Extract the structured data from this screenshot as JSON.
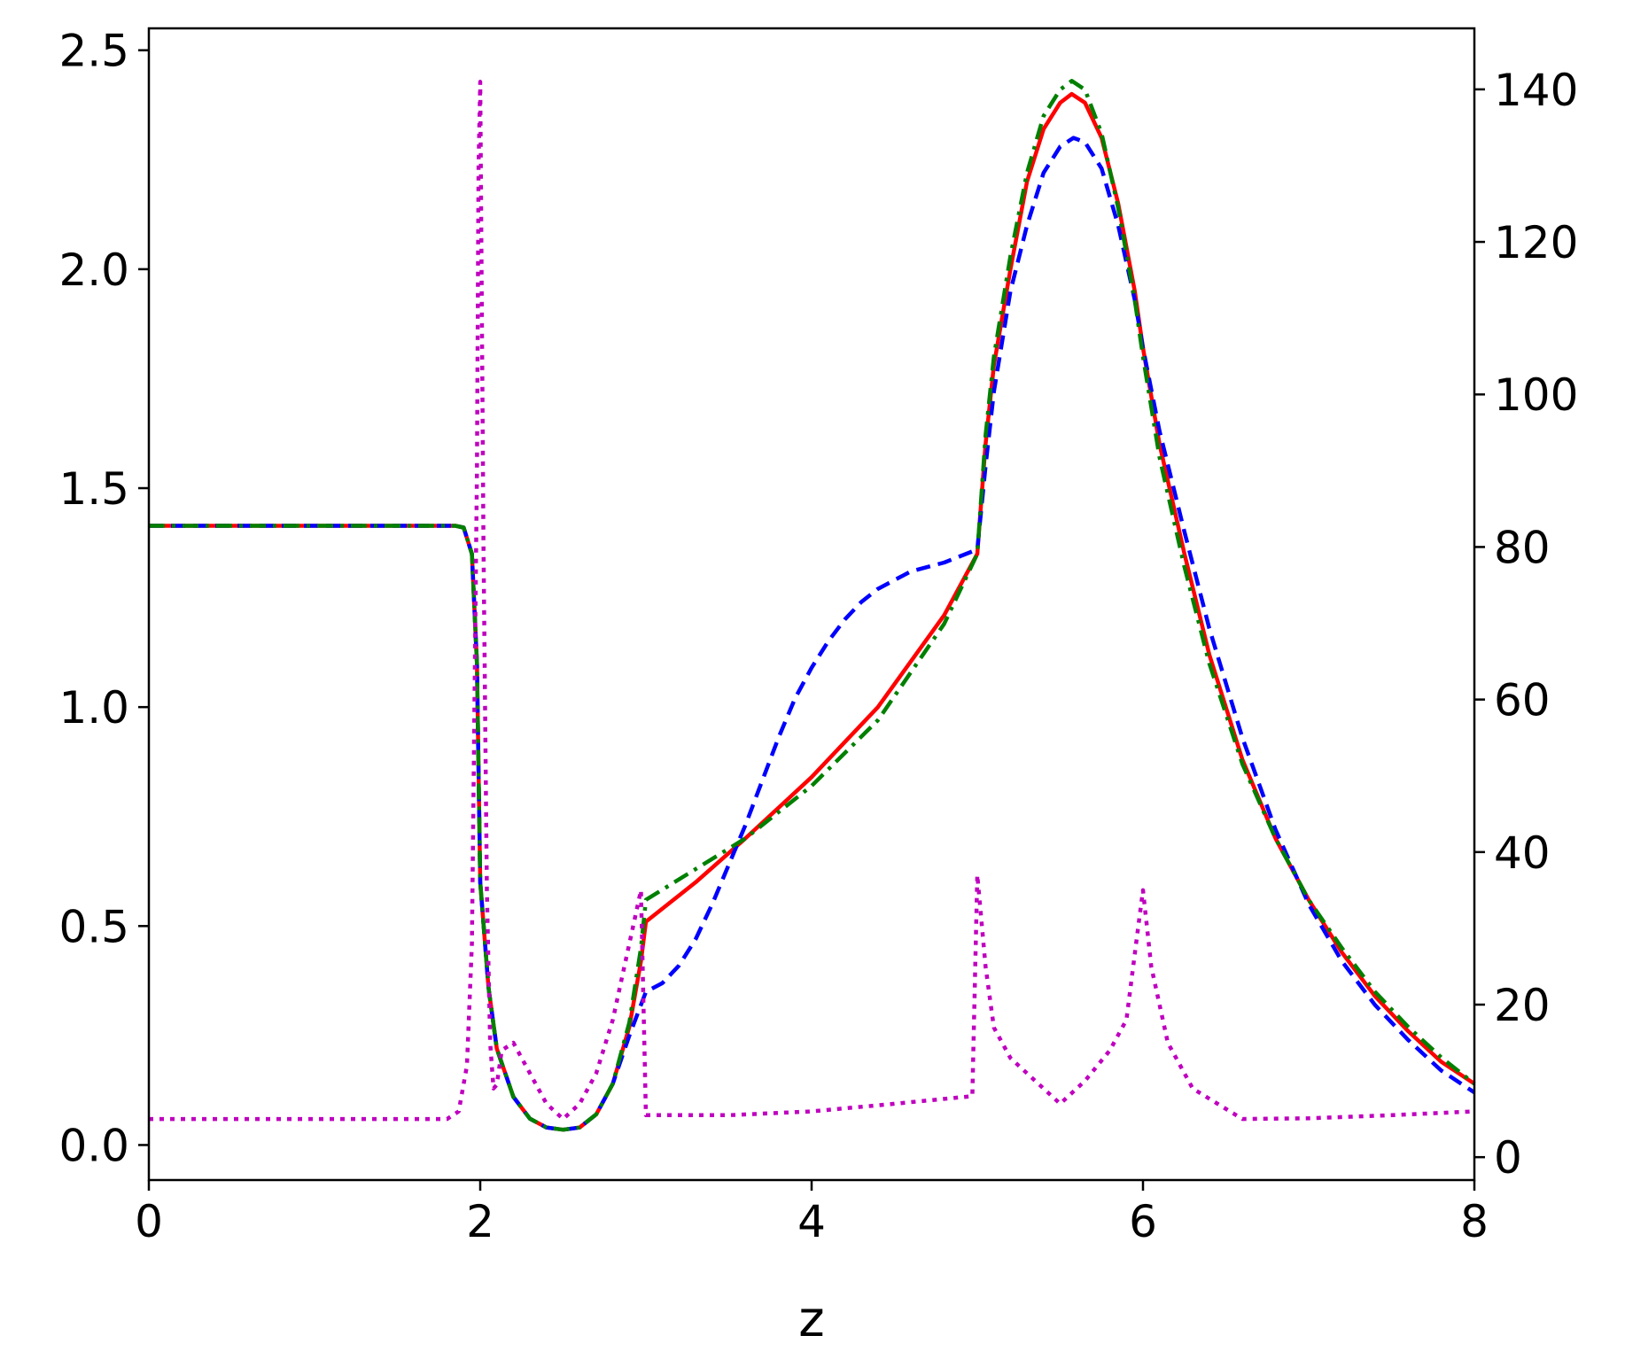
{
  "chart_data": {
    "type": "line",
    "xlabel": "z",
    "ylabel": "",
    "y2label": "",
    "xlim": [
      0,
      8
    ],
    "ylim": [
      -0.08,
      2.55
    ],
    "y2lim": [
      -3,
      148
    ],
    "xticks": [
      "0",
      "2",
      "4",
      "6",
      "8"
    ],
    "yticks": [
      "0.0",
      "0.5",
      "1.0",
      "1.5",
      "2.0",
      "2.5"
    ],
    "y2ticks": [
      "0",
      "20",
      "40",
      "60",
      "80",
      "100",
      "120",
      "140"
    ],
    "grid": false,
    "legend": "none",
    "series": [
      {
        "axis": "left",
        "color": "#ff0000",
        "style": "solid",
        "points": [
          [
            0,
            1.414
          ],
          [
            1.85,
            1.414
          ],
          [
            1.9,
            1.41
          ],
          [
            1.95,
            1.35
          ],
          [
            1.98,
            1.1
          ],
          [
            2.0,
            0.6
          ],
          [
            2.05,
            0.36
          ],
          [
            2.1,
            0.22
          ],
          [
            2.2,
            0.11
          ],
          [
            2.3,
            0.06
          ],
          [
            2.4,
            0.04
          ],
          [
            2.5,
            0.035
          ],
          [
            2.6,
            0.04
          ],
          [
            2.7,
            0.07
          ],
          [
            2.8,
            0.14
          ],
          [
            2.9,
            0.27
          ],
          [
            2.97,
            0.42
          ],
          [
            3.0,
            0.51
          ],
          [
            3.3,
            0.6
          ],
          [
            3.6,
            0.7
          ],
          [
            4.0,
            0.84
          ],
          [
            4.4,
            1.0
          ],
          [
            4.8,
            1.21
          ],
          [
            5.0,
            1.35
          ],
          [
            5.05,
            1.6
          ],
          [
            5.1,
            1.78
          ],
          [
            5.2,
            2.0
          ],
          [
            5.3,
            2.2
          ],
          [
            5.4,
            2.32
          ],
          [
            5.5,
            2.38
          ],
          [
            5.57,
            2.4
          ],
          [
            5.65,
            2.38
          ],
          [
            5.75,
            2.3
          ],
          [
            5.85,
            2.15
          ],
          [
            5.95,
            1.95
          ],
          [
            6.0,
            1.82
          ],
          [
            6.1,
            1.6
          ],
          [
            6.25,
            1.35
          ],
          [
            6.4,
            1.12
          ],
          [
            6.6,
            0.88
          ],
          [
            6.8,
            0.7
          ],
          [
            7.0,
            0.56
          ],
          [
            7.2,
            0.44
          ],
          [
            7.4,
            0.34
          ],
          [
            7.6,
            0.26
          ],
          [
            7.8,
            0.19
          ],
          [
            8.0,
            0.14
          ]
        ]
      },
      {
        "axis": "left",
        "color": "#0000ff",
        "style": "dashed",
        "points": [
          [
            0,
            1.414
          ],
          [
            1.85,
            1.414
          ],
          [
            1.9,
            1.41
          ],
          [
            1.95,
            1.35
          ],
          [
            1.98,
            1.1
          ],
          [
            2.0,
            0.6
          ],
          [
            2.05,
            0.36
          ],
          [
            2.1,
            0.22
          ],
          [
            2.2,
            0.11
          ],
          [
            2.3,
            0.06
          ],
          [
            2.4,
            0.04
          ],
          [
            2.5,
            0.035
          ],
          [
            2.6,
            0.04
          ],
          [
            2.7,
            0.07
          ],
          [
            2.8,
            0.14
          ],
          [
            2.9,
            0.25
          ],
          [
            3.0,
            0.35
          ],
          [
            3.1,
            0.37
          ],
          [
            3.2,
            0.41
          ],
          [
            3.3,
            0.47
          ],
          [
            3.4,
            0.55
          ],
          [
            3.5,
            0.64
          ],
          [
            3.6,
            0.73
          ],
          [
            3.7,
            0.83
          ],
          [
            3.8,
            0.93
          ],
          [
            3.9,
            1.02
          ],
          [
            4.0,
            1.09
          ],
          [
            4.1,
            1.15
          ],
          [
            4.2,
            1.2
          ],
          [
            4.3,
            1.24
          ],
          [
            4.4,
            1.27
          ],
          [
            4.5,
            1.29
          ],
          [
            4.6,
            1.31
          ],
          [
            4.8,
            1.33
          ],
          [
            5.0,
            1.36
          ],
          [
            5.05,
            1.55
          ],
          [
            5.1,
            1.72
          ],
          [
            5.2,
            1.95
          ],
          [
            5.3,
            2.1
          ],
          [
            5.4,
            2.22
          ],
          [
            5.5,
            2.28
          ],
          [
            5.58,
            2.3
          ],
          [
            5.65,
            2.29
          ],
          [
            5.75,
            2.23
          ],
          [
            5.85,
            2.1
          ],
          [
            5.95,
            1.93
          ],
          [
            6.0,
            1.82
          ],
          [
            6.1,
            1.63
          ],
          [
            6.25,
            1.4
          ],
          [
            6.4,
            1.18
          ],
          [
            6.6,
            0.93
          ],
          [
            6.8,
            0.72
          ],
          [
            7.0,
            0.55
          ],
          [
            7.2,
            0.42
          ],
          [
            7.4,
            0.32
          ],
          [
            7.6,
            0.24
          ],
          [
            7.8,
            0.17
          ],
          [
            8.0,
            0.12
          ]
        ]
      },
      {
        "axis": "left",
        "color": "#008000",
        "style": "dashdot",
        "points": [
          [
            0,
            1.414
          ],
          [
            1.85,
            1.414
          ],
          [
            1.9,
            1.41
          ],
          [
            1.95,
            1.35
          ],
          [
            1.98,
            1.1
          ],
          [
            2.0,
            0.6
          ],
          [
            2.05,
            0.36
          ],
          [
            2.1,
            0.22
          ],
          [
            2.2,
            0.11
          ],
          [
            2.3,
            0.06
          ],
          [
            2.4,
            0.04
          ],
          [
            2.5,
            0.035
          ],
          [
            2.6,
            0.04
          ],
          [
            2.7,
            0.07
          ],
          [
            2.8,
            0.14
          ],
          [
            2.9,
            0.28
          ],
          [
            2.97,
            0.45
          ],
          [
            3.0,
            0.56
          ],
          [
            3.3,
            0.63
          ],
          [
            3.6,
            0.7
          ],
          [
            4.0,
            0.82
          ],
          [
            4.4,
            0.97
          ],
          [
            4.8,
            1.19
          ],
          [
            5.0,
            1.35
          ],
          [
            5.05,
            1.62
          ],
          [
            5.1,
            1.8
          ],
          [
            5.2,
            2.03
          ],
          [
            5.3,
            2.22
          ],
          [
            5.4,
            2.35
          ],
          [
            5.5,
            2.41
          ],
          [
            5.57,
            2.43
          ],
          [
            5.65,
            2.41
          ],
          [
            5.75,
            2.31
          ],
          [
            5.85,
            2.14
          ],
          [
            5.95,
            1.93
          ],
          [
            6.0,
            1.8
          ],
          [
            6.1,
            1.57
          ],
          [
            6.25,
            1.32
          ],
          [
            6.4,
            1.1
          ],
          [
            6.6,
            0.87
          ],
          [
            6.8,
            0.7
          ],
          [
            7.0,
            0.56
          ],
          [
            7.2,
            0.45
          ],
          [
            7.4,
            0.35
          ],
          [
            7.6,
            0.27
          ],
          [
            7.8,
            0.2
          ],
          [
            8.0,
            0.14
          ]
        ]
      },
      {
        "axis": "right",
        "color": "#bf00bf",
        "style": "dotted",
        "points": [
          [
            0,
            5
          ],
          [
            1.8,
            5
          ],
          [
            1.87,
            6
          ],
          [
            1.92,
            12
          ],
          [
            1.95,
            28
          ],
          [
            1.98,
            90
          ],
          [
            1.99,
            130
          ],
          [
            2.0,
            141
          ],
          [
            2.02,
            80
          ],
          [
            2.04,
            35
          ],
          [
            2.06,
            15
          ],
          [
            2.08,
            9
          ],
          [
            2.1,
            9.5
          ],
          [
            2.13,
            14
          ],
          [
            2.2,
            15
          ],
          [
            2.3,
            11
          ],
          [
            2.4,
            7
          ],
          [
            2.5,
            5
          ],
          [
            2.6,
            7
          ],
          [
            2.7,
            11
          ],
          [
            2.8,
            18
          ],
          [
            2.9,
            28
          ],
          [
            2.97,
            35
          ],
          [
            3.0,
            5.5
          ],
          [
            3.5,
            5.5
          ],
          [
            4.0,
            6
          ],
          [
            4.5,
            7
          ],
          [
            4.97,
            8
          ],
          [
            5.0,
            37
          ],
          [
            5.05,
            25
          ],
          [
            5.1,
            17
          ],
          [
            5.2,
            13
          ],
          [
            5.35,
            10
          ],
          [
            5.5,
            7
          ],
          [
            5.65,
            10
          ],
          [
            5.8,
            14
          ],
          [
            5.9,
            18
          ],
          [
            5.97,
            30
          ],
          [
            6.0,
            35
          ],
          [
            6.05,
            25
          ],
          [
            6.15,
            15
          ],
          [
            6.3,
            9
          ],
          [
            6.45,
            7
          ],
          [
            6.6,
            5
          ],
          [
            7.0,
            5.1
          ],
          [
            7.5,
            5.5
          ],
          [
            8.0,
            6
          ]
        ]
      }
    ]
  }
}
